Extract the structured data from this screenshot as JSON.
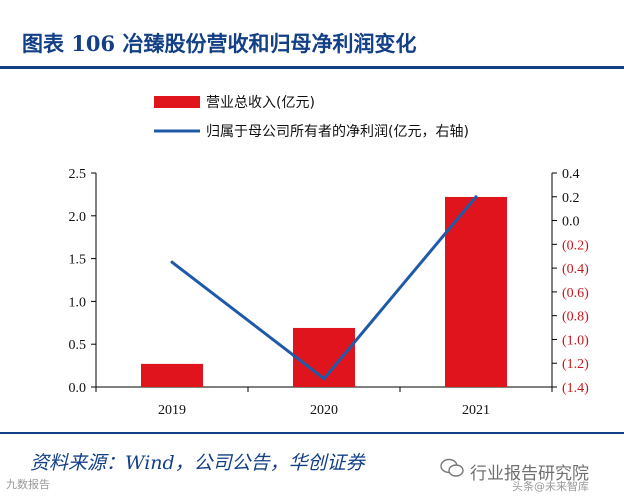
{
  "title": "图表 106  冶臻股份营收和归母净利润变化",
  "source": "资料来源：Wind，公司公告，华创证券",
  "watermark": {
    "main": "行业报告研究院",
    "sub_left": "九数报告",
    "sub_right": "头条@未来智库"
  },
  "colors": {
    "bar": "#e0141c",
    "line": "#1f5aa8",
    "title": "#123f86",
    "negative": "#c8161d"
  },
  "chart_data": {
    "type": "bar",
    "categories": [
      "2019",
      "2020",
      "2021"
    ],
    "series": [
      {
        "name": "营业总收入(亿元)",
        "type": "bar",
        "axis": "left",
        "values": [
          0.27,
          0.69,
          2.22
        ]
      },
      {
        "name": "归属于母公司所有者的净利润(亿元，右轴)",
        "type": "line",
        "axis": "right",
        "values": [
          -0.35,
          -1.33,
          0.2
        ]
      }
    ],
    "y_left": {
      "min": 0,
      "max": 2.5,
      "ticks": [
        "0.0",
        "0.5",
        "1.0",
        "1.5",
        "2.0",
        "2.5"
      ]
    },
    "y_right": {
      "min": -1.4,
      "max": 0.4,
      "ticks": [
        "0.4",
        "0.2",
        "0.0",
        "(0.2)",
        "(0.4)",
        "(0.6)",
        "(0.8)",
        "(1.0)",
        "(1.2)",
        "(1.4)"
      ]
    },
    "legend_position": "top",
    "grid": false
  }
}
